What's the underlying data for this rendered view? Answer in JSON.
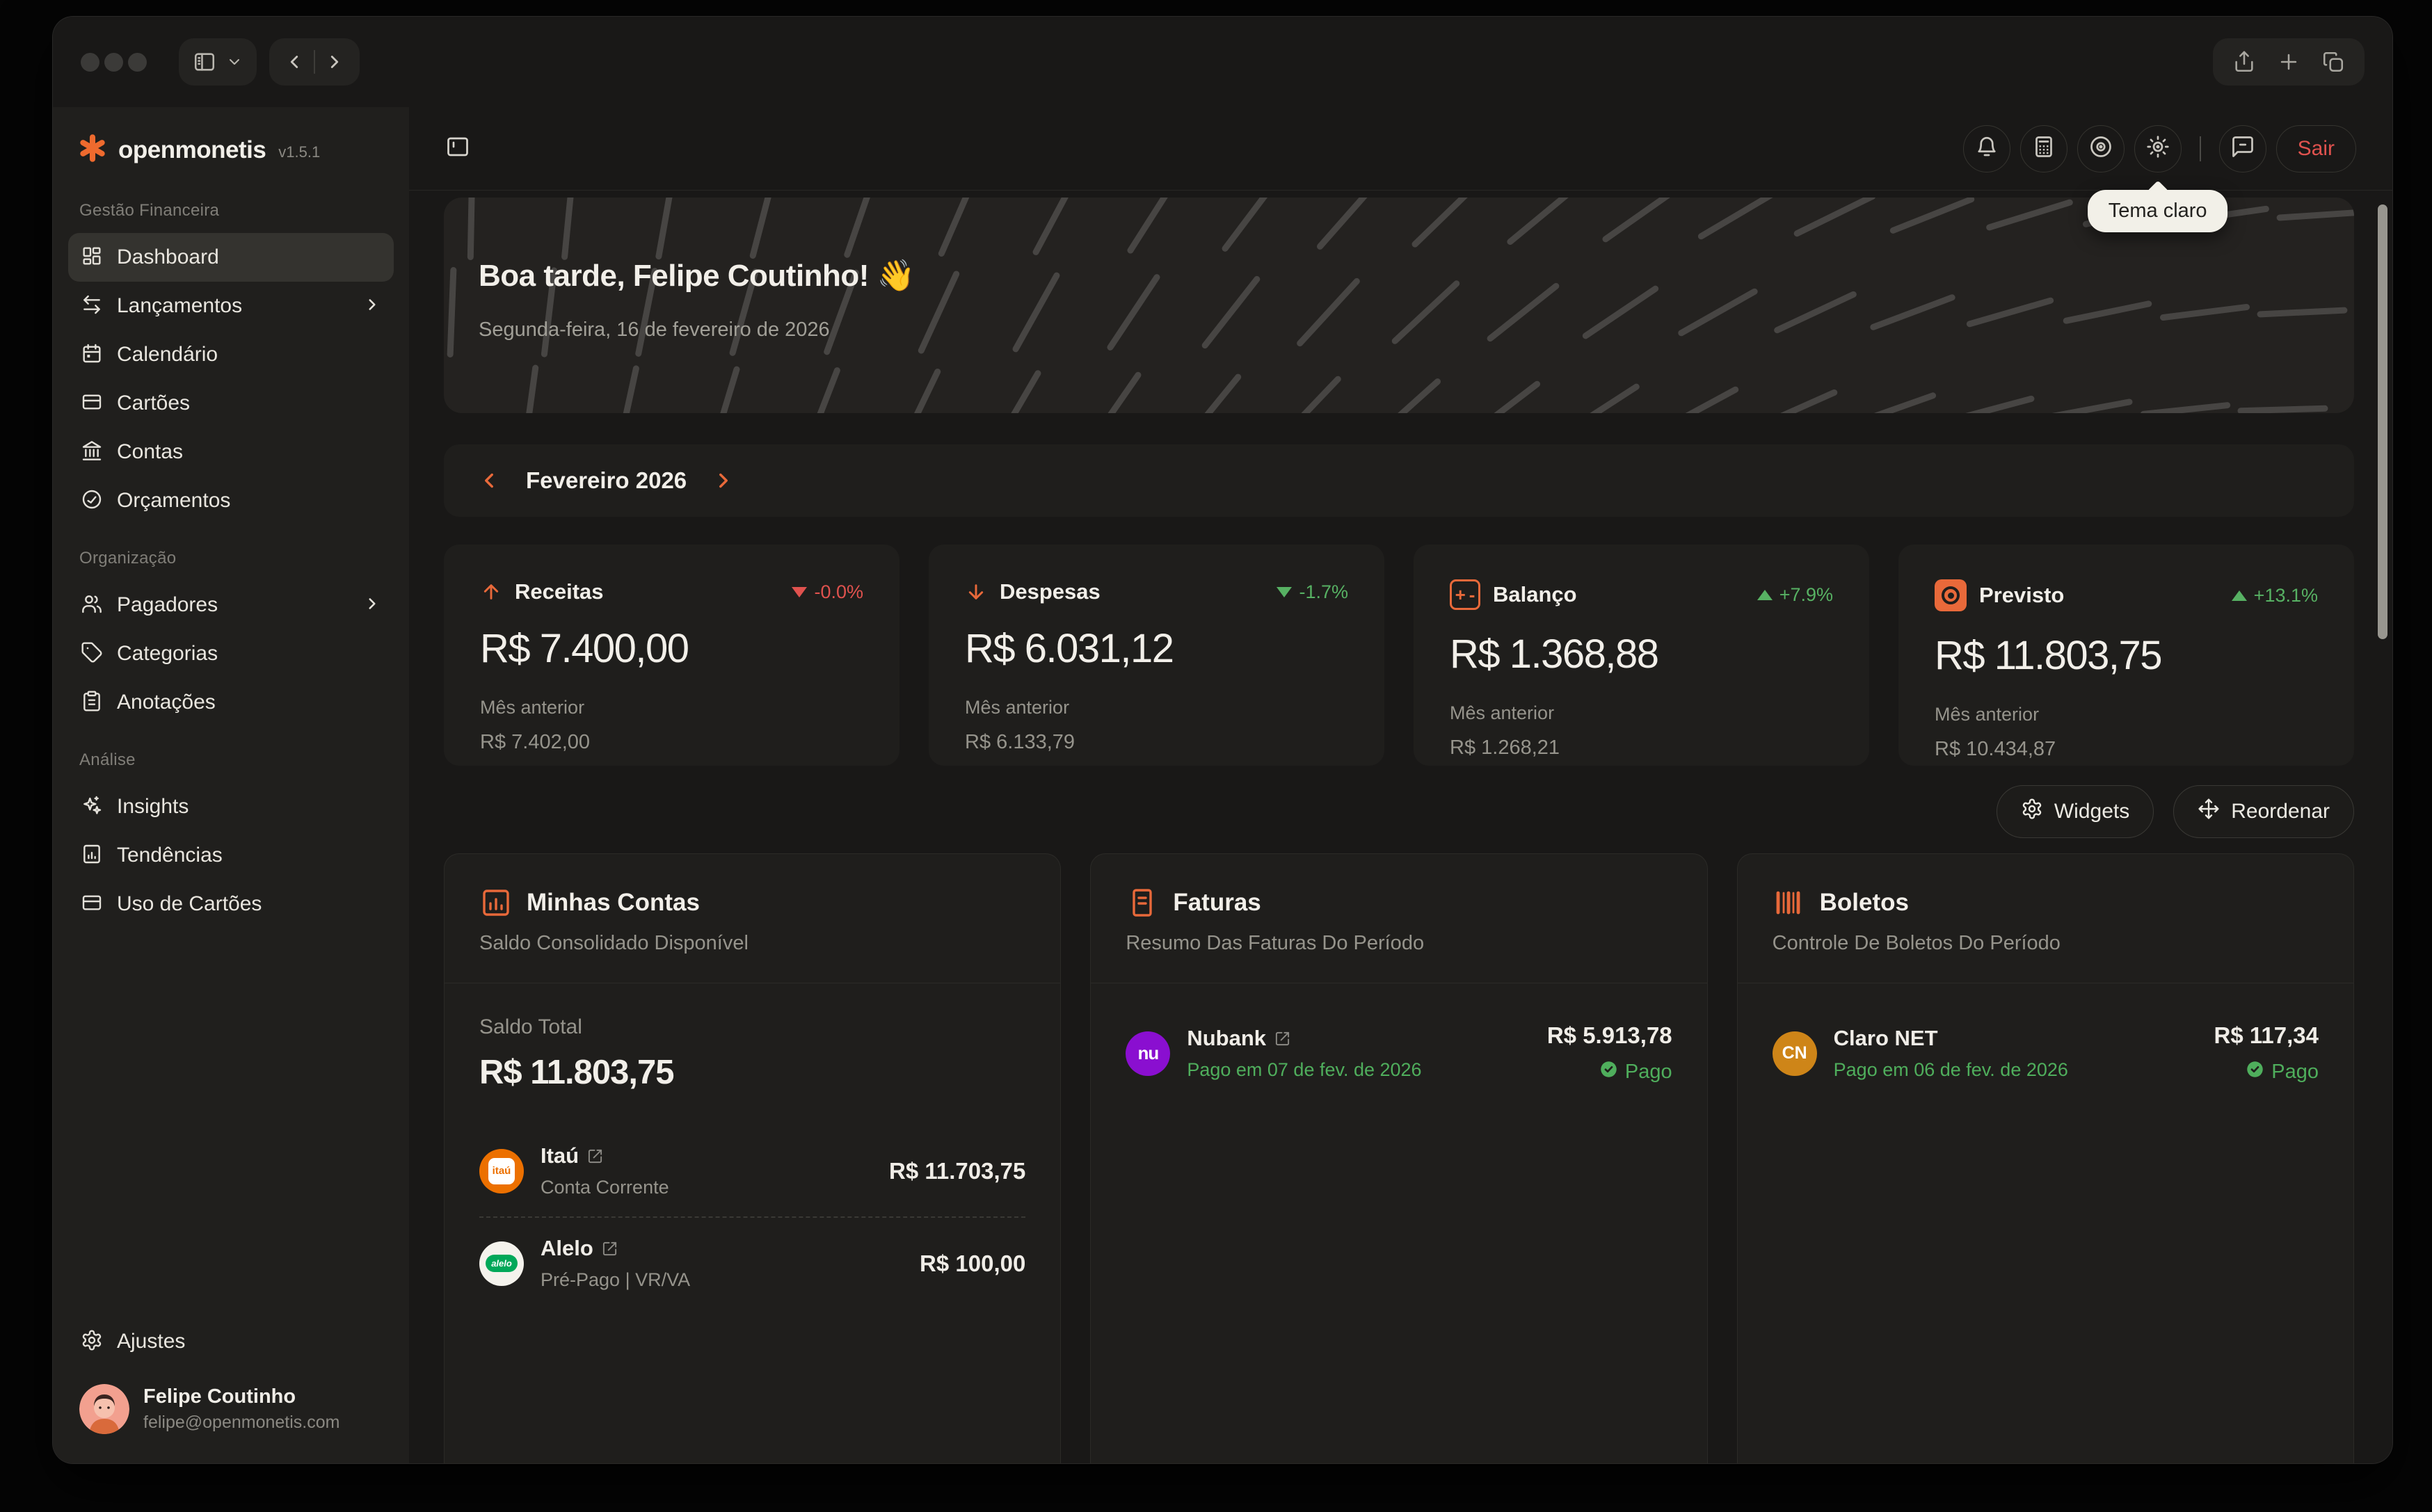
{
  "titlebar": {},
  "sidebar": {
    "logo_text": "openmonetis",
    "version": "v1.5.1",
    "sections": [
      {
        "label": "Gestão Financeira",
        "items": [
          {
            "label": "Dashboard"
          },
          {
            "label": "Lançamentos"
          },
          {
            "label": "Calendário"
          },
          {
            "label": "Cartões"
          },
          {
            "label": "Contas"
          },
          {
            "label": "Orçamentos"
          }
        ]
      },
      {
        "label": "Organização",
        "items": [
          {
            "label": "Pagadores"
          },
          {
            "label": "Categorias"
          },
          {
            "label": "Anotações"
          }
        ]
      },
      {
        "label": "Análise",
        "items": [
          {
            "label": "Insights"
          },
          {
            "label": "Tendências"
          },
          {
            "label": "Uso de Cartões"
          }
        ]
      }
    ],
    "footer": {
      "settings_label": "Ajustes",
      "user_name": "Felipe Coutinho",
      "user_email": "felipe@openmonetis.com"
    }
  },
  "header": {
    "logout_label": "Sair",
    "theme_tooltip": "Tema claro"
  },
  "hero": {
    "greeting": "Boa tarde, Felipe Coutinho!",
    "emoji": "👋",
    "date": "Segunda-feira, 16 de fevereiro de 2026"
  },
  "month_selector": {
    "label": "Fevereiro 2026"
  },
  "stats": [
    {
      "title": "Receitas",
      "delta": "-0.0%",
      "value": "R$ 7.400,00",
      "prev_label": "Mês anterior",
      "prev_value": "R$ 7.402,00"
    },
    {
      "title": "Despesas",
      "delta": "-1.7%",
      "value": "R$ 6.031,12",
      "prev_label": "Mês anterior",
      "prev_value": "R$ 6.133,79"
    },
    {
      "title": "Balanço",
      "delta": "+7.9%",
      "value": "R$ 1.368,88",
      "prev_label": "Mês anterior",
      "prev_value": "R$ 1.268,21"
    },
    {
      "title": "Previsto",
      "delta": "+13.1%",
      "value": "R$ 11.803,75",
      "prev_label": "Mês anterior",
      "prev_value": "R$ 10.434,87"
    }
  ],
  "actions": {
    "widgets_label": "Widgets",
    "reorder_label": "Reordenar"
  },
  "widgets": {
    "accounts": {
      "title": "Minhas Contas",
      "subtitle": "Saldo Consolidado Disponível",
      "total_label": "Saldo Total",
      "total_value": "R$ 11.803,75",
      "rows": [
        {
          "name": "Itaú",
          "logo_text": "itaú",
          "sub": "Conta Corrente",
          "value": "R$ 11.703,75"
        },
        {
          "name": "Alelo",
          "logo_text": "alelo",
          "sub": "Pré-Pago | VR/VA",
          "value": "R$ 100,00"
        }
      ]
    },
    "invoices": {
      "title": "Faturas",
      "subtitle": "Resumo Das Faturas Do Período",
      "rows": [
        {
          "name": "Nubank",
          "logo_text": "nu",
          "status_text": "Pago em 07 de fev. de 2026",
          "value": "R$ 5.913,78",
          "badge": "Pago"
        }
      ]
    },
    "bills": {
      "title": "Boletos",
      "subtitle": "Controle De Boletos Do Período",
      "rows": [
        {
          "name": "Claro NET",
          "logo_text": "CN",
          "status_text": "Pago em 06 de fev. de 2026",
          "value": "R$ 117,34",
          "badge": "Pago"
        }
      ]
    }
  },
  "theme": {
    "accent_orange": "#e8693a",
    "green": "#57b163",
    "status_green": "#4fae5c",
    "red": "#e0524e",
    "nubank_purple": "#8a0fd0",
    "itau_orange": "#ec7000",
    "alelo_green": "#00a859",
    "claro_amber": "#ce8518",
    "tooltip_bg": "#f2f0e8"
  }
}
